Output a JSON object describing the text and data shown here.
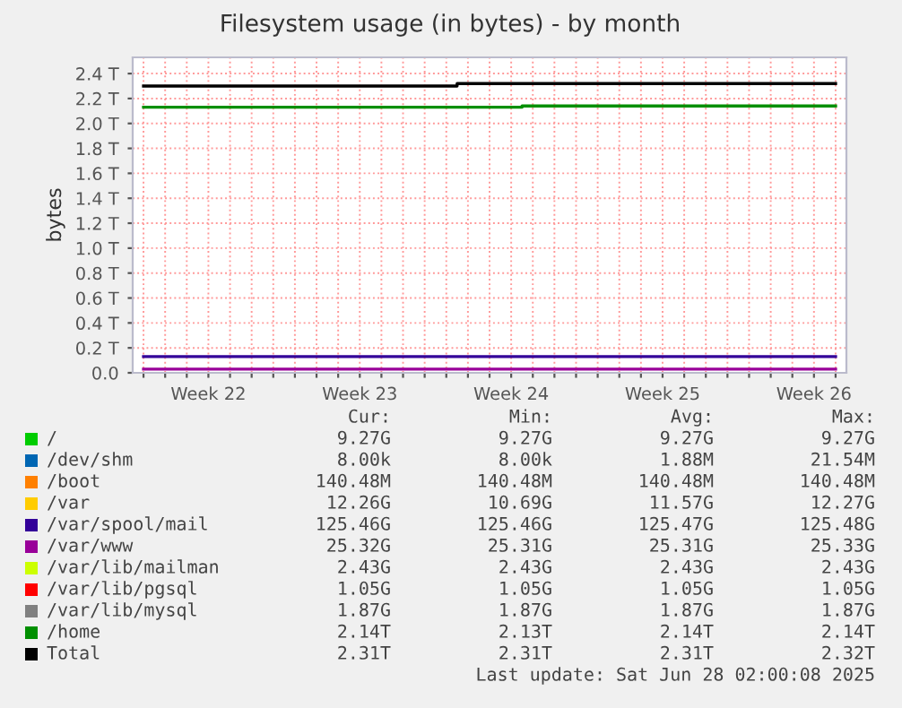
{
  "chart_data": {
    "type": "line",
    "title": "Filesystem usage (in bytes) - by month",
    "ylabel": "bytes",
    "categories": [
      null,
      null,
      null,
      "Week 22",
      null,
      null,
      null,
      null,
      null,
      null,
      "Week 23",
      null,
      null,
      null,
      null,
      null,
      null,
      "Week 24",
      null,
      null,
      null,
      null,
      null,
      null,
      "Week 25",
      null,
      null,
      null,
      null,
      null,
      null,
      "Week 26",
      null
    ],
    "ylim": [
      0,
      2.53
    ],
    "yticks": [
      {
        "value": 0,
        "label": "0.0"
      },
      {
        "value": 0.2,
        "label": "0.2 T"
      },
      {
        "value": 0.4,
        "label": "0.4 T"
      },
      {
        "value": 0.6,
        "label": "0.6 T"
      },
      {
        "value": 0.8,
        "label": "0.8 T"
      },
      {
        "value": 1.0,
        "label": "1.0 T"
      },
      {
        "value": 1.2,
        "label": "1.2 T"
      },
      {
        "value": 1.4,
        "label": "1.4 T"
      },
      {
        "value": 1.6,
        "label": "1.6 T"
      },
      {
        "value": 1.8,
        "label": "1.8 T"
      },
      {
        "value": 2.0,
        "label": "2.0 T"
      },
      {
        "value": 2.2,
        "label": "2.2 T"
      },
      {
        "value": 2.4,
        "label": "2.4 T"
      }
    ],
    "grid": true,
    "legend": "bottom",
    "series": [
      {
        "name": "/",
        "color": "#00cc00",
        "values": [
          null,
          null,
          null,
          null,
          null,
          null,
          null,
          null,
          null,
          null,
          null,
          null,
          null,
          null,
          null,
          null,
          null,
          null,
          null,
          null,
          null,
          null,
          null,
          null,
          null,
          null,
          null,
          null,
          null,
          null,
          null,
          null,
          null
        ]
      },
      {
        "name": "/dev/shm",
        "color": "#0066b3",
        "values": [
          null,
          null,
          null,
          null,
          null,
          null,
          null,
          null,
          null,
          null,
          null,
          null,
          null,
          null,
          null,
          null,
          null,
          null,
          null,
          null,
          null,
          null,
          null,
          null,
          null,
          null,
          null,
          null,
          null,
          null,
          null,
          null,
          null
        ]
      },
      {
        "name": "/boot",
        "color": "#ff8000",
        "values": [
          null,
          null,
          null,
          null,
          null,
          null,
          null,
          null,
          null,
          null,
          null,
          null,
          null,
          null,
          null,
          null,
          null,
          null,
          null,
          null,
          null,
          null,
          null,
          null,
          null,
          null,
          null,
          null,
          null,
          null,
          null,
          null,
          null
        ]
      },
      {
        "name": "/var",
        "color": "#ffcc00",
        "values": [
          null,
          null,
          null,
          null,
          null,
          null,
          null,
          null,
          null,
          null,
          null,
          null,
          null,
          null,
          null,
          null,
          null,
          null,
          null,
          null,
          null,
          null,
          null,
          null,
          null,
          null,
          null,
          null,
          null,
          null,
          null,
          null,
          null
        ]
      },
      {
        "name": "/var/spool/mail",
        "color": "#330099",
        "values": [
          0.13,
          0.13,
          0.13,
          0.13,
          0.13,
          0.13,
          0.13,
          0.13,
          0.13,
          0.13,
          0.13,
          0.13,
          0.13,
          0.13,
          0.13,
          0.13,
          0.13,
          0.13,
          0.13,
          0.13,
          0.13,
          0.13,
          0.13,
          0.13,
          0.13,
          0.13,
          0.13,
          0.13,
          0.13,
          0.13,
          0.13,
          0.13,
          0.13
        ]
      },
      {
        "name": "/var/www",
        "color": "#990099",
        "values": [
          0.03,
          0.03,
          0.03,
          0.03,
          0.03,
          0.03,
          0.03,
          0.03,
          0.03,
          0.03,
          0.03,
          0.03,
          0.03,
          0.03,
          0.03,
          0.03,
          0.03,
          0.03,
          0.03,
          0.03,
          0.03,
          0.03,
          0.03,
          0.03,
          0.03,
          0.03,
          0.03,
          0.03,
          0.03,
          0.03,
          0.03,
          0.03,
          0.03
        ]
      },
      {
        "name": "/var/lib/mailman",
        "color": "#ccff00",
        "values": [
          null,
          null,
          null,
          null,
          null,
          null,
          null,
          null,
          null,
          null,
          null,
          null,
          null,
          null,
          null,
          null,
          null,
          null,
          null,
          null,
          null,
          null,
          null,
          null,
          null,
          null,
          null,
          null,
          null,
          null,
          null,
          null,
          null
        ]
      },
      {
        "name": "/var/lib/pgsql",
        "color": "#ff0000",
        "values": [
          null,
          null,
          null,
          null,
          null,
          null,
          null,
          null,
          null,
          null,
          null,
          null,
          null,
          null,
          null,
          null,
          null,
          null,
          null,
          null,
          null,
          null,
          null,
          null,
          null,
          null,
          null,
          null,
          null,
          null,
          null,
          null,
          null
        ]
      },
      {
        "name": "/var/lib/mysql",
        "color": "#808080",
        "values": [
          null,
          null,
          null,
          null,
          null,
          null,
          null,
          null,
          null,
          null,
          null,
          null,
          null,
          null,
          null,
          null,
          null,
          null,
          null,
          null,
          null,
          null,
          null,
          null,
          null,
          null,
          null,
          null,
          null,
          null,
          null,
          null,
          null
        ]
      },
      {
        "name": "/home",
        "color": "#008f00",
        "type": "step",
        "values": [
          2.13,
          2.13,
          2.13,
          2.13,
          2.13,
          2.13,
          2.13,
          2.13,
          2.13,
          2.13,
          2.13,
          2.13,
          2.13,
          2.13,
          2.13,
          2.13,
          2.13,
          2.13,
          2.14,
          2.14,
          2.14,
          2.14,
          2.14,
          2.14,
          2.14,
          2.14,
          2.14,
          2.14,
          2.14,
          2.14,
          2.14,
          2.14,
          2.14
        ]
      },
      {
        "name": "Total",
        "color": "#000000",
        "type": "step",
        "values": [
          2.3,
          2.3,
          2.3,
          2.3,
          2.3,
          2.3,
          2.3,
          2.3,
          2.3,
          2.3,
          2.3,
          2.3,
          2.3,
          2.3,
          2.3,
          2.32,
          2.32,
          2.32,
          2.32,
          2.32,
          2.32,
          2.32,
          2.32,
          2.32,
          2.32,
          2.32,
          2.32,
          2.32,
          2.32,
          2.32,
          2.32,
          2.32,
          2.32
        ]
      }
    ],
    "annotations": [
      "Cur:",
      "Min:",
      "Avg:",
      "Max:",
      "9.27G",
      "9.27G",
      "9.27G",
      "9.27G",
      "8.00k",
      "8.00k",
      "1.88M",
      "21.54M",
      "140.48M",
      "140.48M",
      "140.48M",
      "140.48M",
      "12.26G",
      "10.69G",
      "11.57G",
      "12.27G",
      "125.46G",
      "125.46G",
      "125.47G",
      "125.48G",
      "25.32G",
      "25.31G",
      "25.31G",
      "25.33G",
      "2.43G",
      "2.43G",
      "2.43G",
      "2.43G",
      "1.05G",
      "1.05G",
      "1.05G",
      "1.05G",
      "1.87G",
      "1.87G",
      "1.87G",
      "1.87G",
      "2.14T",
      "2.13T",
      "2.14T",
      "2.14T",
      "2.31T",
      "2.31T",
      "2.31T",
      "2.32T",
      "Last update: Sat Jun 28 02:00:08 2025"
    ]
  }
}
